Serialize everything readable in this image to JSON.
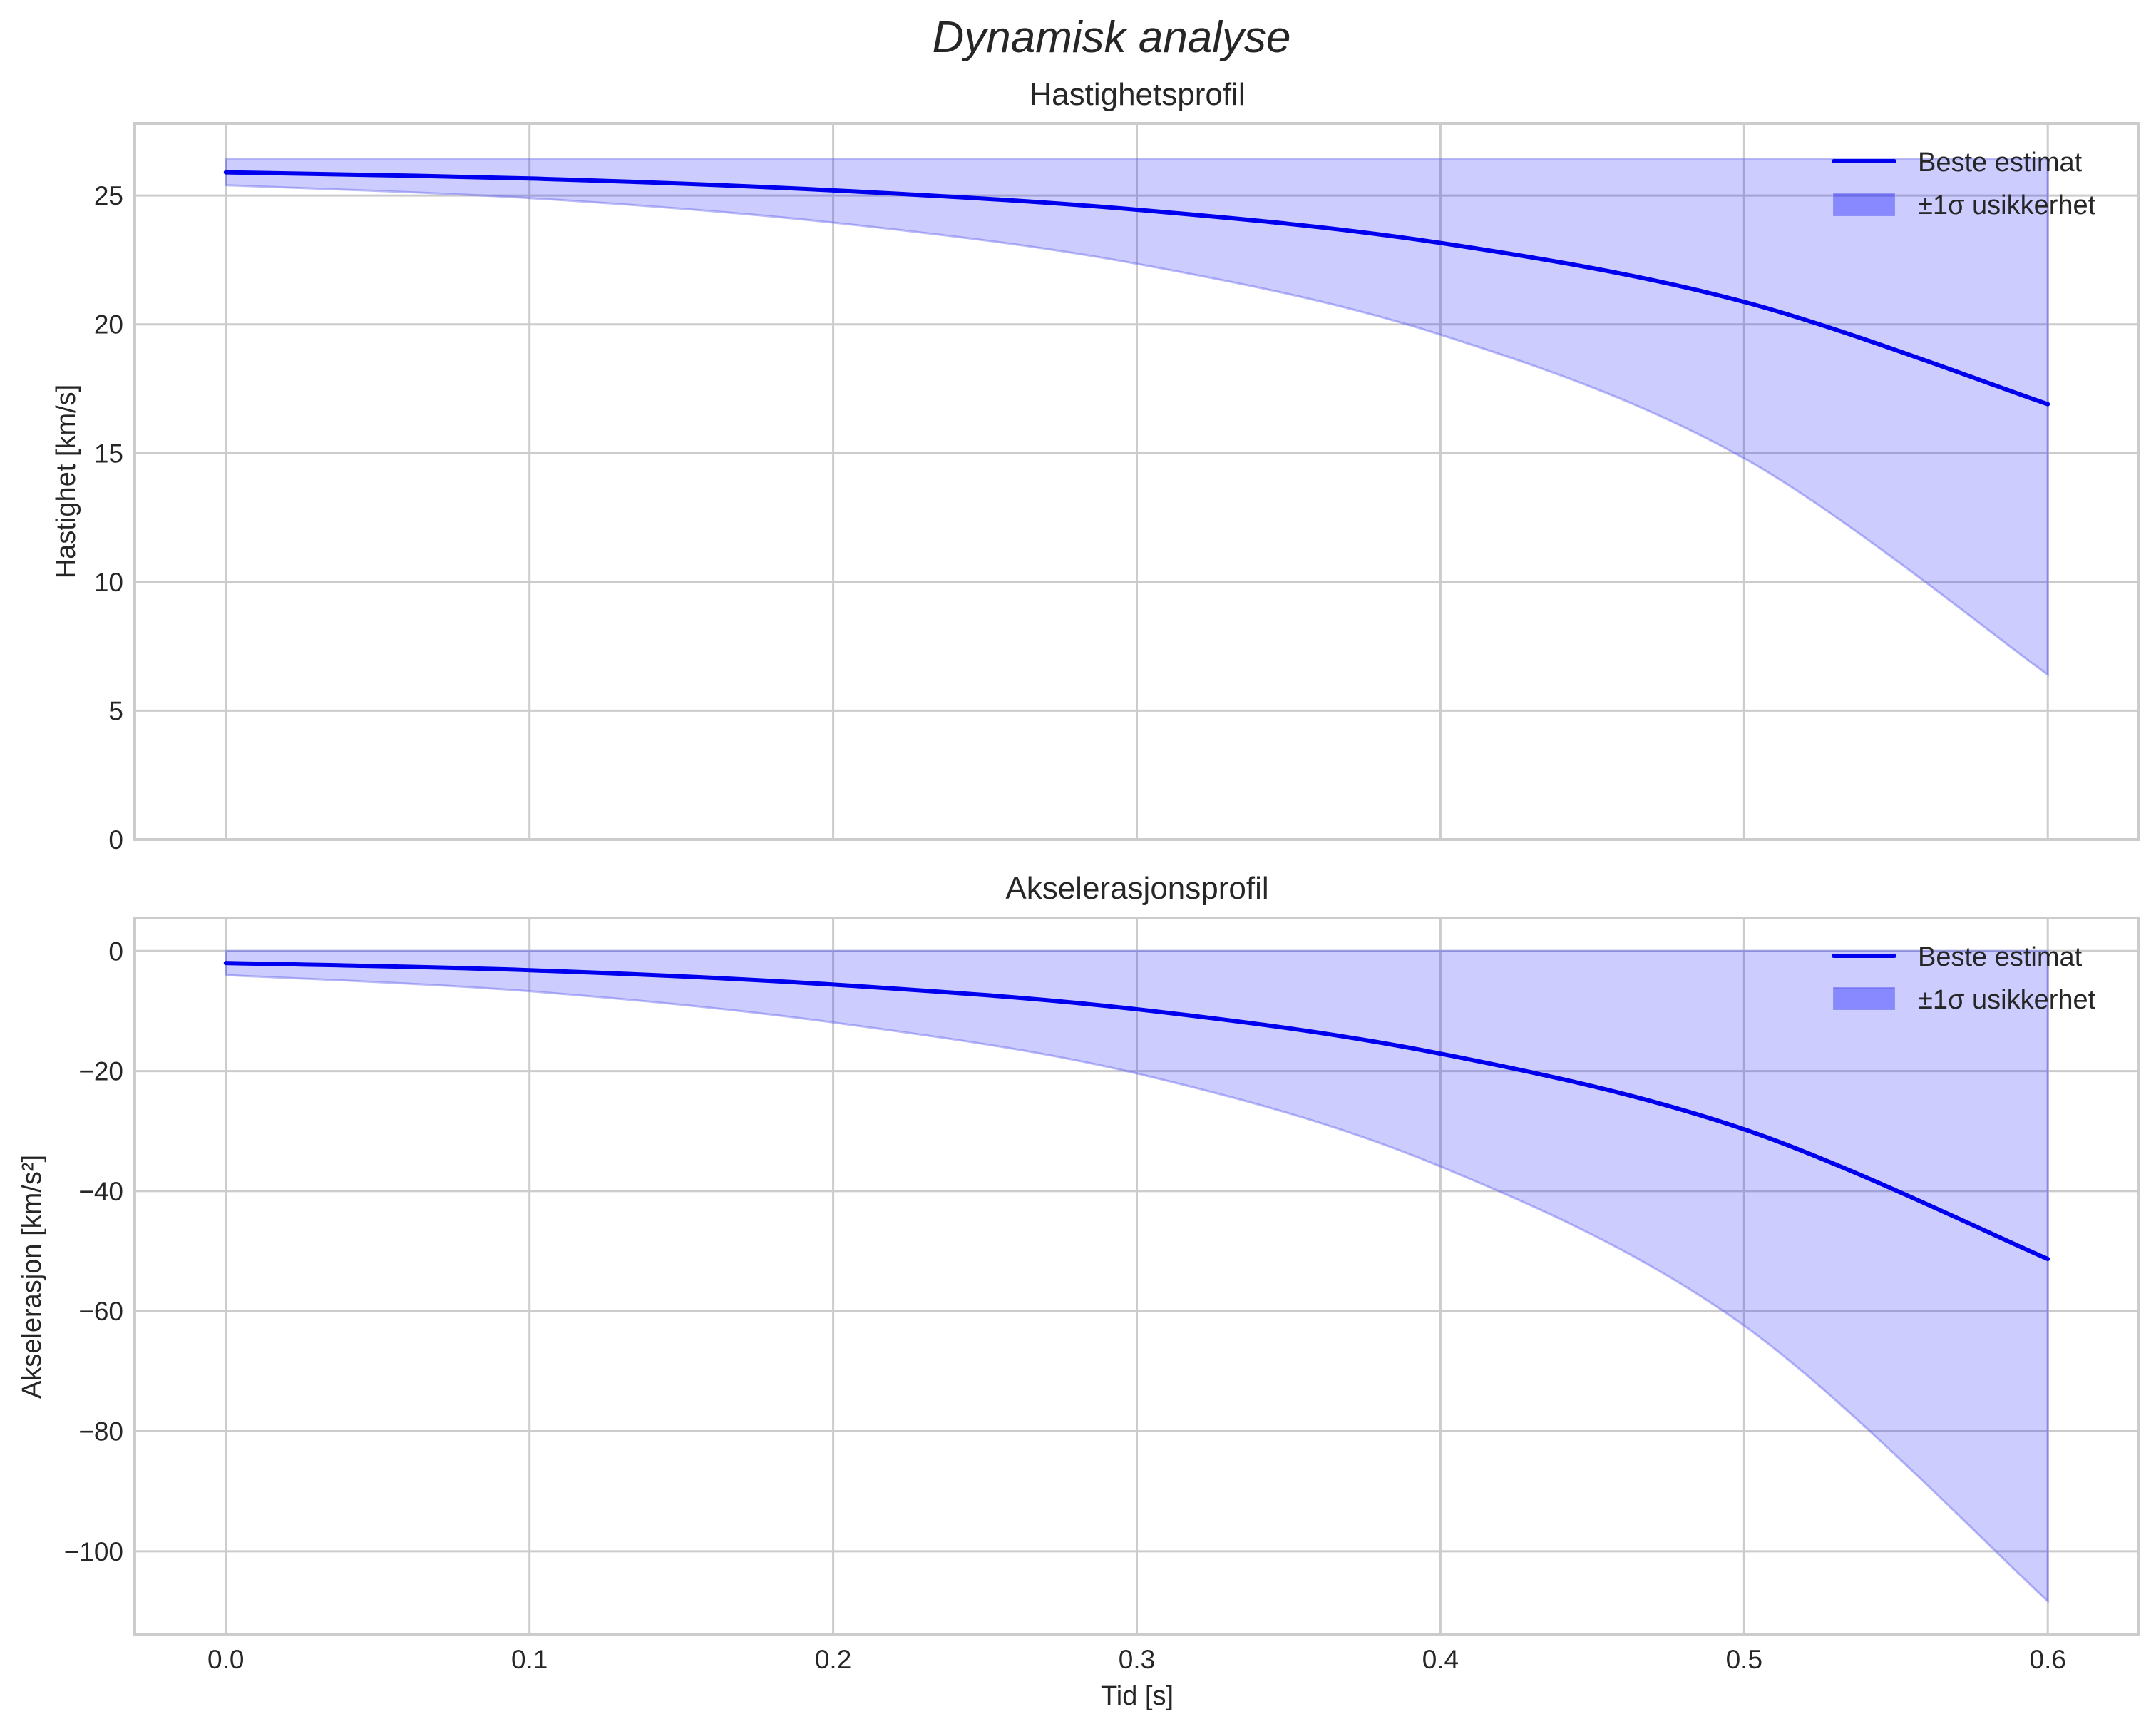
{
  "figure": {
    "title": "Dynamisk analyse",
    "xlabel": "Tid [s]"
  },
  "colors": {
    "line": "#0000ee",
    "band_fill": "#0000ff",
    "band_fill_opacity": 0.2,
    "band_edge": "#6666ee",
    "grid": "#cccccc",
    "text": "#262626"
  },
  "legend": {
    "line_label": "Beste estimat",
    "band_label": "±1σ usikkerhet",
    "position": "upper right"
  },
  "chart_data": [
    {
      "type": "line",
      "title": "Hastighetsprofil",
      "xlabel": "",
      "ylabel": "Hastighet [km/s]",
      "xlim": [
        -0.03,
        0.63
      ],
      "ylim": [
        0,
        27.8
      ],
      "xticks": [
        0.0,
        0.1,
        0.2,
        0.3,
        0.4,
        0.5,
        0.6
      ],
      "xtick_labels": [
        "",
        "",
        "",
        "",
        "",
        "",
        ""
      ],
      "yticks": [
        0,
        5,
        10,
        15,
        20,
        25
      ],
      "ytick_labels": [
        "0",
        "5",
        "10",
        "15",
        "20",
        "25"
      ],
      "grid": true,
      "legend_position": "upper right",
      "x": [
        0.0,
        0.1,
        0.2,
        0.3,
        0.4,
        0.5,
        0.6
      ],
      "series": [
        {
          "name": "Beste estimat",
          "kind": "line",
          "values": [
            25.9,
            25.66,
            25.2,
            24.45,
            23.16,
            20.87,
            16.9
          ]
        },
        {
          "name": "±1σ usikkerhet",
          "kind": "band",
          "lower": [
            25.4,
            24.9,
            23.95,
            22.35,
            19.6,
            14.8,
            6.4
          ],
          "upper": [
            26.4,
            26.4,
            26.4,
            26.4,
            26.4,
            26.4,
            26.4
          ]
        }
      ]
    },
    {
      "type": "line",
      "title": "Akselerasjonsprofil",
      "xlabel": "Tid [s]",
      "ylabel": "Akselerasjon [km/s²]",
      "xlim": [
        -0.03,
        0.63
      ],
      "ylim": [
        -113.8,
        5.5
      ],
      "xticks": [
        0.0,
        0.1,
        0.2,
        0.3,
        0.4,
        0.5,
        0.6
      ],
      "xtick_labels": [
        "0.0",
        "0.1",
        "0.2",
        "0.3",
        "0.4",
        "0.5",
        "0.6"
      ],
      "yticks": [
        0,
        -20,
        -40,
        -60,
        -80,
        -100
      ],
      "ytick_labels": [
        "0",
        "−20",
        "−40",
        "−60",
        "−80",
        "−100"
      ],
      "grid": true,
      "legend_position": "upper right",
      "x": [
        0.0,
        0.1,
        0.2,
        0.3,
        0.4,
        0.5,
        0.6
      ],
      "series": [
        {
          "name": "Beste estimat",
          "kind": "line",
          "values": [
            -2.0,
            -3.2,
            -5.6,
            -9.7,
            -17.1,
            -29.7,
            -51.3
          ]
        },
        {
          "name": "±1σ usikkerhet",
          "kind": "band",
          "lower": [
            -4.0,
            -6.7,
            -11.9,
            -20.4,
            -35.9,
            -62.4,
            -108.3
          ],
          "upper": [
            0,
            0,
            0,
            0,
            0,
            0,
            0
          ]
        }
      ]
    }
  ]
}
